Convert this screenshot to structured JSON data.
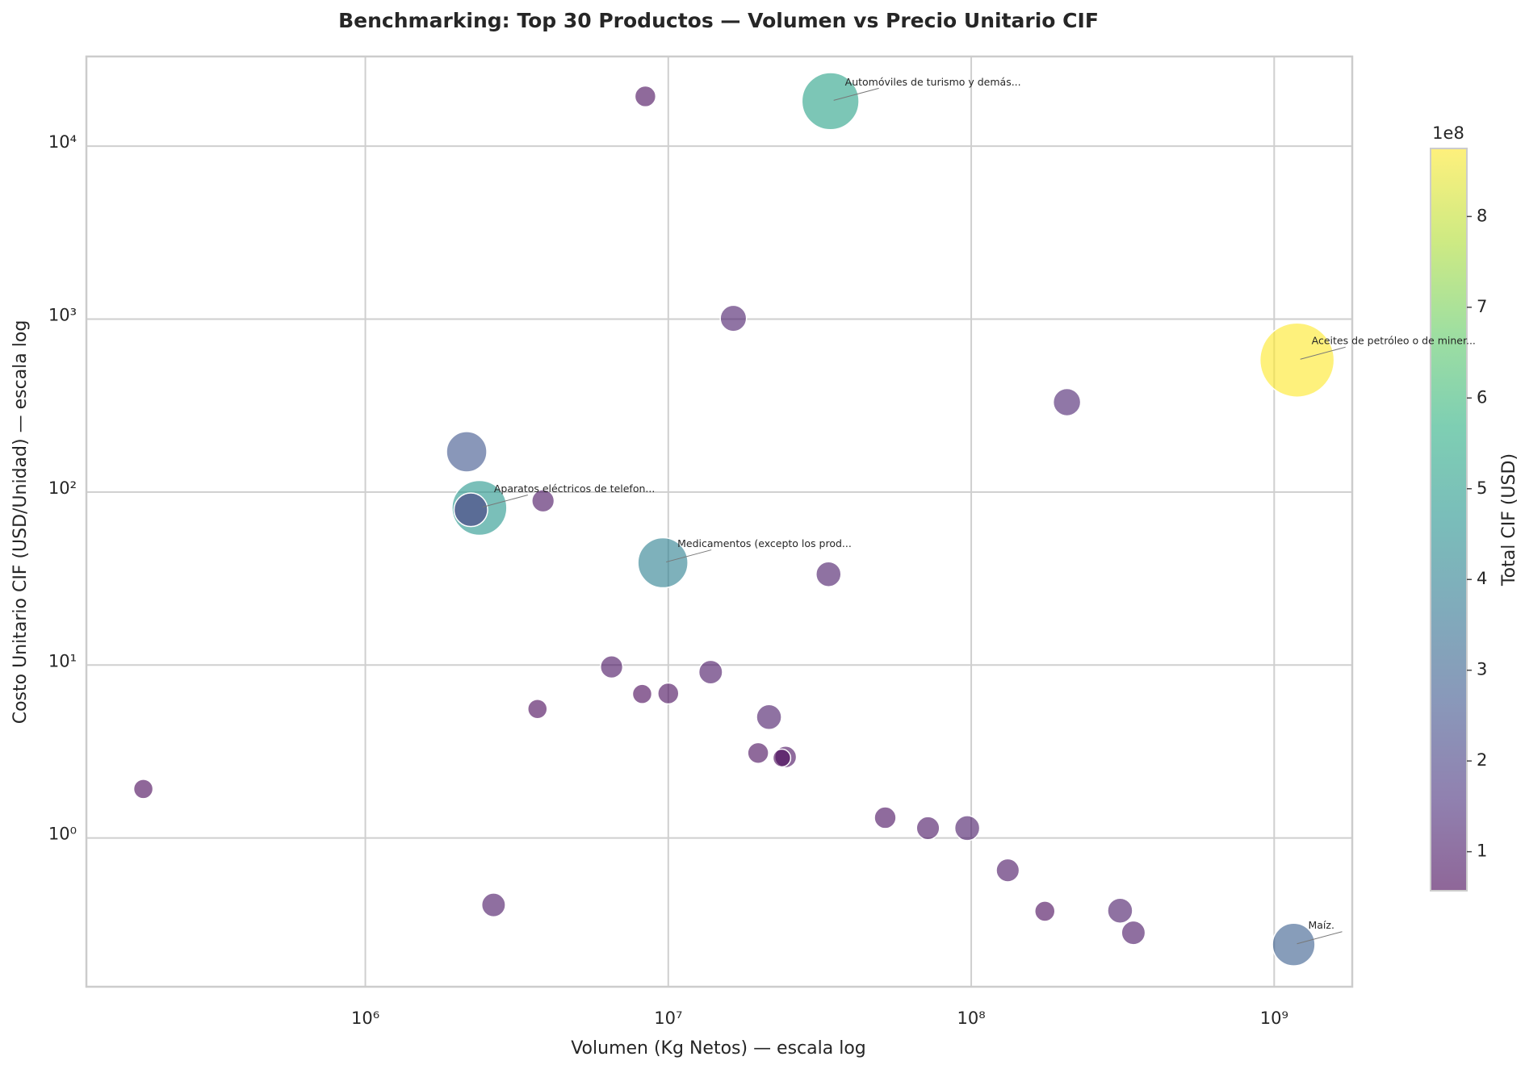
{
  "chart_data": {
    "type": "scatter",
    "title": "Benchmarking: Top 30 Productos — Volumen vs Precio Unitario CIF",
    "x_label": "Volumen (Kg Netos) — escala log",
    "y_label": "Costo Unitario CIF (USD/Unidad) — escala log",
    "colorbar_label": "Total CIF (USD)",
    "colorbar_offset_label": "1e8",
    "x_scale": "log",
    "y_scale": "log",
    "grid": true,
    "colormap": "viridis",
    "xlim": [
      120000,
      1810000000
    ],
    "ylim": [
      0.138,
      33000
    ],
    "xticks": [
      {
        "value": 1000000,
        "label": "10⁶"
      },
      {
        "value": 10000000,
        "label": "10⁷"
      },
      {
        "value": 100000000,
        "label": "10⁸"
      },
      {
        "value": 1000000000,
        "label": "10⁹"
      }
    ],
    "yticks": [
      {
        "value": 1,
        "label": "10⁰"
      },
      {
        "value": 10,
        "label": "10¹"
      },
      {
        "value": 100,
        "label": "10²"
      },
      {
        "value": 1000,
        "label": "10³"
      },
      {
        "value": 10000,
        "label": "10⁴"
      }
    ],
    "clim": [
      57000000,
      875000000
    ],
    "cticks": [
      {
        "value": 100000000,
        "label": "1"
      },
      {
        "value": 200000000,
        "label": "2"
      },
      {
        "value": 300000000,
        "label": "3"
      },
      {
        "value": 400000000,
        "label": "4"
      },
      {
        "value": 500000000,
        "label": "5"
      },
      {
        "value": 600000000,
        "label": "6"
      },
      {
        "value": 700000000,
        "label": "7"
      },
      {
        "value": 800000000,
        "label": "8"
      }
    ],
    "x": [
      185000,
      8400000,
      34300000,
      16400000,
      1190000000,
      207000000,
      2160000,
      2380000,
      2230000,
      3860000,
      9600000,
      33800000,
      6500000,
      8200000,
      10000000,
      13800000,
      3700000,
      21500000,
      19800000,
      24400000,
      23700000,
      52000000,
      72000000,
      97000000,
      132000000,
      175000000,
      310000000,
      343000000,
      1160000000,
      2650000
    ],
    "y": [
      1.92,
      19400,
      18200,
      1010,
      580,
      331,
      171,
      81,
      79,
      89,
      39,
      33.5,
      9.75,
      6.8,
      6.85,
      9.1,
      5.57,
      5.0,
      3.1,
      2.94,
      2.9,
      1.31,
      1.14,
      1.14,
      0.65,
      0.377,
      0.38,
      0.283,
      0.242,
      0.41
    ],
    "size": [
      60000000,
      70000000,
      520000000,
      110000000,
      880000000,
      120000000,
      260000000,
      480000000,
      180000000,
      80000000,
      400000000,
      100000000,
      80000000,
      60000000,
      70000000,
      90000000,
      60000000,
      100000000,
      70000000,
      75000000,
      50000000,
      75000000,
      85000000,
      100000000,
      85000000,
      65000000,
      100000000,
      90000000,
      290000000,
      90000000
    ],
    "labels": [
      null,
      null,
      "Automóviles de turismo y demás...",
      null,
      "Aceites de petróleo o de miner...",
      null,
      null,
      "Aparatos eléctricos de telefon...",
      null,
      null,
      "Medicamentos (excepto los prod...",
      null,
      null,
      null,
      null,
      null,
      null,
      null,
      null,
      null,
      null,
      null,
      null,
      null,
      null,
      null,
      null,
      null,
      "Maíz.",
      null
    ]
  }
}
